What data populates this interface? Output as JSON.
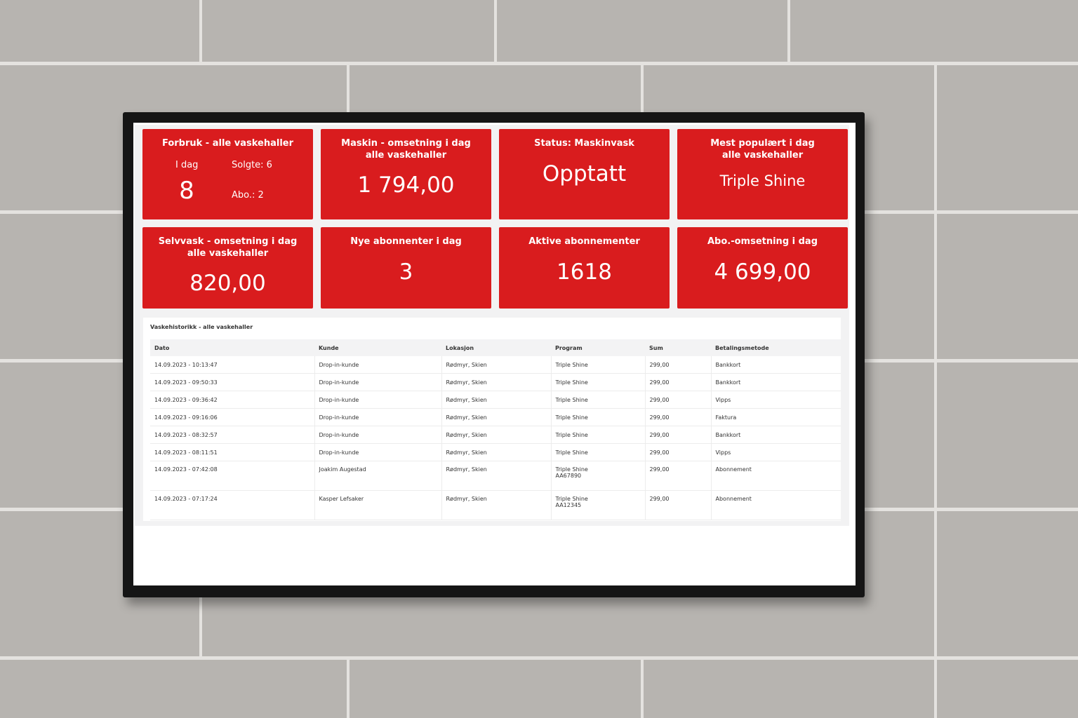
{
  "cards": {
    "forbruk": {
      "title": "Forbruk - alle vaskehaller",
      "today_label": "I dag",
      "today_value": "8",
      "sold_label": "Solgte: 6",
      "abo_label": "Abo.: 2"
    },
    "maskin": {
      "title_line1": "Maskin - omsetning i dag",
      "title_line2": "alle vaskehaller",
      "value": "1 794,00"
    },
    "status": {
      "title": "Status: Maskinvask",
      "value": "Opptatt"
    },
    "popular": {
      "title_line1": "Mest populært i dag",
      "title_line2": "alle vaskehaller",
      "value": "Triple Shine"
    },
    "selvvask": {
      "title_line1": "Selvvask - omsetning i dag",
      "title_line2": "alle vaskehaller",
      "value": "820,00"
    },
    "nye": {
      "title": "Nye abonnenter i dag",
      "value": "3"
    },
    "aktive": {
      "title": "Aktive abonnementer",
      "value": "1618"
    },
    "abo_oms": {
      "title": "Abo.-omsetning i dag",
      "value": "4 699,00"
    }
  },
  "history": {
    "title": "Vaskehistorikk - alle vaskehaller",
    "columns": [
      "Dato",
      "Kunde",
      "Lokasjon",
      "Program",
      "Sum",
      "Betalingsmetode"
    ],
    "rows": [
      {
        "dato": "14.09.2023 - 10:13:47",
        "kunde": "Drop-in-kunde",
        "lokasjon": "Rødmyr, Skien",
        "program": "Triple Shine",
        "code": "",
        "sum": "299,00",
        "betaling": "Bankkort"
      },
      {
        "dato": "14.09.2023 - 09:50:33",
        "kunde": "Drop-in-kunde",
        "lokasjon": "Rødmyr, Skien",
        "program": "Triple Shine",
        "code": "",
        "sum": "299,00",
        "betaling": "Bankkort"
      },
      {
        "dato": "14.09.2023 - 09:36:42",
        "kunde": "Drop-in-kunde",
        "lokasjon": "Rødmyr, Skien",
        "program": "Triple Shine",
        "code": "",
        "sum": "299,00",
        "betaling": "Vipps"
      },
      {
        "dato": "14.09.2023 - 09:16:06",
        "kunde": "Drop-in-kunde",
        "lokasjon": "Rødmyr, Skien",
        "program": "Triple Shine",
        "code": "",
        "sum": "299,00",
        "betaling": "Faktura"
      },
      {
        "dato": "14.09.2023 - 08:32:57",
        "kunde": "Drop-in-kunde",
        "lokasjon": "Rødmyr, Skien",
        "program": "Triple Shine",
        "code": "",
        "sum": "299,00",
        "betaling": "Bankkort"
      },
      {
        "dato": "14.09.2023 - 08:11:51",
        "kunde": "Drop-in-kunde",
        "lokasjon": "Rødmyr, Skien",
        "program": "Triple Shine",
        "code": "",
        "sum": "299,00",
        "betaling": "Vipps"
      },
      {
        "dato": "14.09.2023 - 07:42:08",
        "kunde": "Joakim Augestad",
        "lokasjon": "Rødmyr, Skien",
        "program": "Triple Shine",
        "code": "AA67890",
        "sum": "299,00",
        "betaling": "Abonnement"
      },
      {
        "dato": "14.09.2023 - 07:17:24",
        "kunde": "Kasper Lefsaker",
        "lokasjon": "Rødmyr, Skien",
        "program": "Triple Shine",
        "code": "AA12345",
        "sum": "299,00",
        "betaling": "Abonnement"
      }
    ]
  },
  "colors": {
    "card_red": "#d91c1e",
    "wall": "#b7b4b0",
    "bezel": "#151515"
  }
}
